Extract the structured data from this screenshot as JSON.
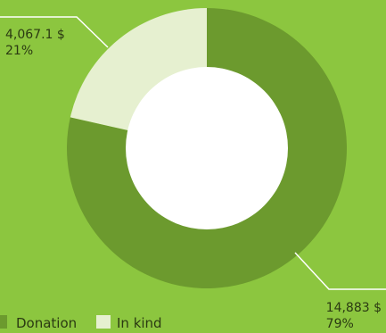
{
  "chart_data": {
    "type": "pie",
    "series": [
      {
        "name": "Donation",
        "value": 14883,
        "value_label": "14,883 $",
        "percent_label": "79%",
        "color": "#6c9a2e"
      },
      {
        "name": "In kind",
        "value": 4067.1,
        "value_label": "4,067.1 $",
        "percent_label": "21%",
        "color": "#e6f0d0"
      }
    ],
    "legend": {
      "placement": "bottom-left",
      "items": [
        "Donation",
        "In kind"
      ]
    }
  },
  "colors": {
    "background": "#8cc63f",
    "leader": "#ffffff",
    "center": "#ffffff"
  }
}
